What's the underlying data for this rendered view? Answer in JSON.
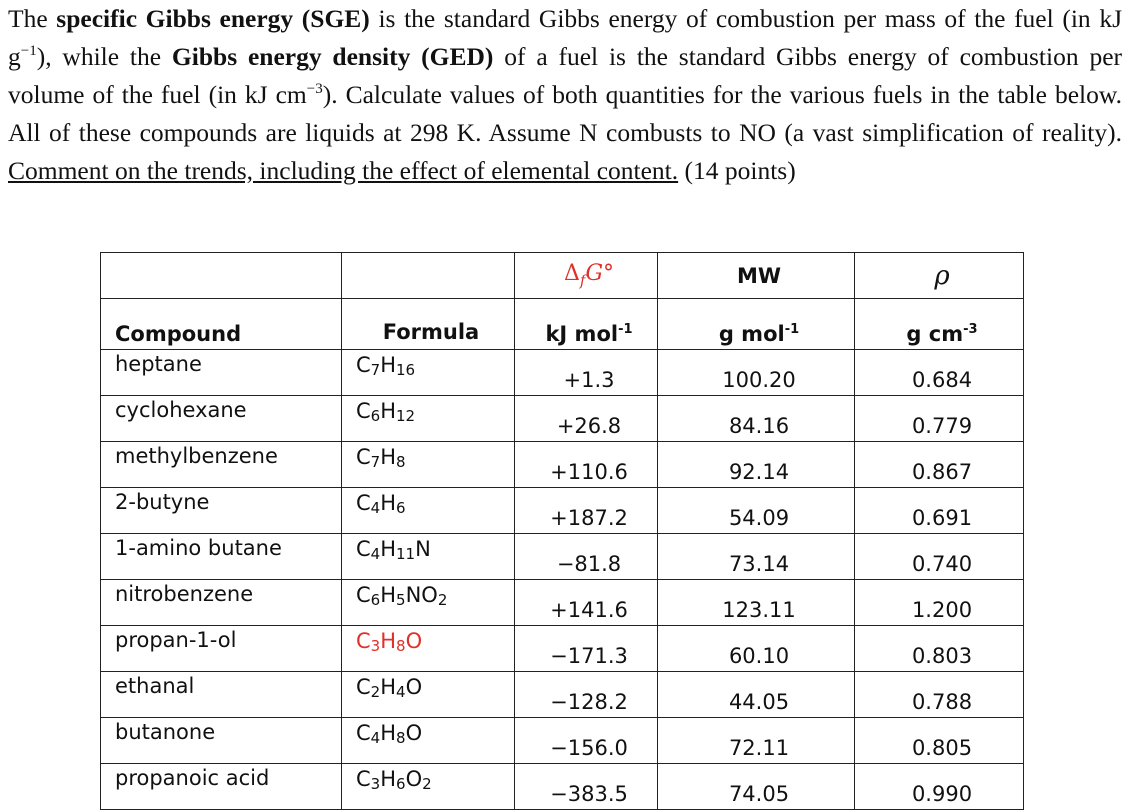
{
  "intro": [
    "The ",
    "specific Gibbs energy (SGE)",
    " is the standard Gibbs energy of combustion per mass of the fuel (in kJ g",
    "−1",
    "), while the ",
    "Gibbs energy density (GED)",
    " of a fuel is the standard Gibbs energy of combustion per volume of the fuel (in kJ cm",
    "−3",
    "). Calculate values of both quantities for the various fuels in the table below. All of these compounds are liquids at 298 K. Assume N combusts to NO (a vast simplification of reality). ",
    "Comment on the trends, including the effect of elemental content.",
    " (14 points)"
  ],
  "table": {
    "columns": [
      {
        "name": "Compound"
      },
      {
        "name": "Formula"
      },
      {
        "symbol": [
          "Δ",
          "f",
          "G°"
        ],
        "unit": [
          "kJ mol",
          "-1"
        ]
      },
      {
        "symbol": "MW",
        "unit": [
          "g mol",
          "-1"
        ]
      },
      {
        "symbol": "ρ",
        "unit": [
          "g cm",
          "-3"
        ]
      }
    ],
    "rows": [
      [
        "heptane",
        "C7H16",
        "+1.3",
        "100.20",
        "0.684"
      ],
      [
        "cyclohexane",
        "C6H12",
        "+26.8",
        "84.16",
        "0.779"
      ],
      [
        "methylbenzene",
        "C7H8",
        "+110.6",
        "92.14",
        "0.867"
      ],
      [
        "2-butyne",
        "C4H6",
        "+187.2",
        "54.09",
        "0.691"
      ],
      [
        "1-amino butane",
        "C4H11N",
        "−81.8",
        "73.14",
        "0.740"
      ],
      [
        "nitrobenzene",
        "C6H5NO2",
        "+141.6",
        "123.11",
        "1.200"
      ],
      [
        "propan-1-ol",
        "C3H8O",
        "−171.3",
        "60.10",
        "0.803"
      ],
      [
        "ethanal",
        "C2H4O",
        "−128.2",
        "44.05",
        "0.788"
      ],
      [
        "butanone",
        "C4H8O",
        "−156.0",
        "72.11",
        "0.805"
      ],
      [
        "propanoic acid",
        "C3H6O2",
        "−383.5",
        "74.05",
        "0.990"
      ]
    ],
    "highlight_formula_row": 6,
    "highlight_color": "#e0302a"
  }
}
